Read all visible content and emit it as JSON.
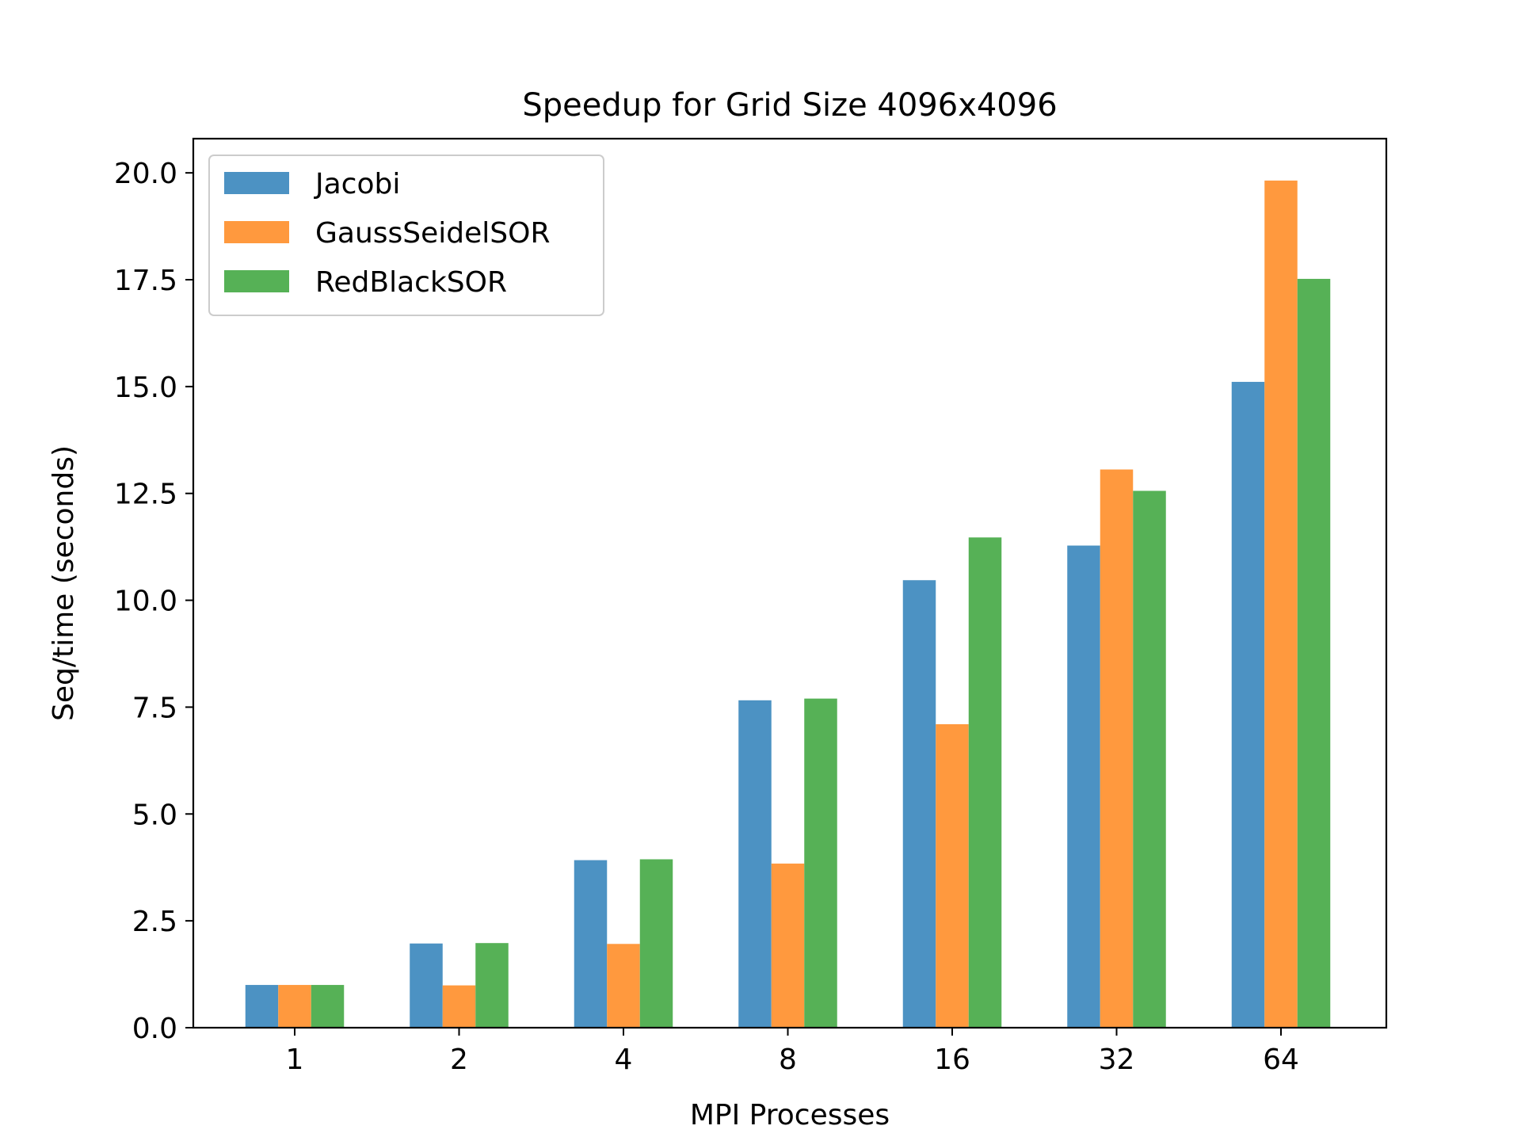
{
  "chart_data": {
    "type": "bar",
    "title": "Speedup for Grid Size 4096x4096",
    "xlabel": "MPI Processes",
    "ylabel": "Seq/time (seconds)",
    "categories": [
      "1",
      "2",
      "4",
      "8",
      "16",
      "32",
      "64"
    ],
    "ylim": [
      0,
      20.8
    ],
    "yticks": [
      "0.0",
      "2.5",
      "5.0",
      "7.5",
      "10.0",
      "12.5",
      "15.0",
      "17.5",
      "20.0"
    ],
    "grid": false,
    "legend_position": "top-left",
    "series": [
      {
        "name": "Jacobi",
        "color": "#4c92c3",
        "values": [
          1.0,
          1.97,
          3.92,
          7.66,
          10.47,
          11.28,
          15.11
        ]
      },
      {
        "name": "GaussSeidelSOR",
        "color": "#ff993e",
        "values": [
          1.0,
          0.99,
          1.96,
          3.84,
          7.1,
          13.06,
          19.82
        ]
      },
      {
        "name": "RedBlackSOR",
        "color": "#56b156",
        "values": [
          1.0,
          1.98,
          3.94,
          7.7,
          11.47,
          12.56,
          17.52
        ]
      }
    ]
  }
}
